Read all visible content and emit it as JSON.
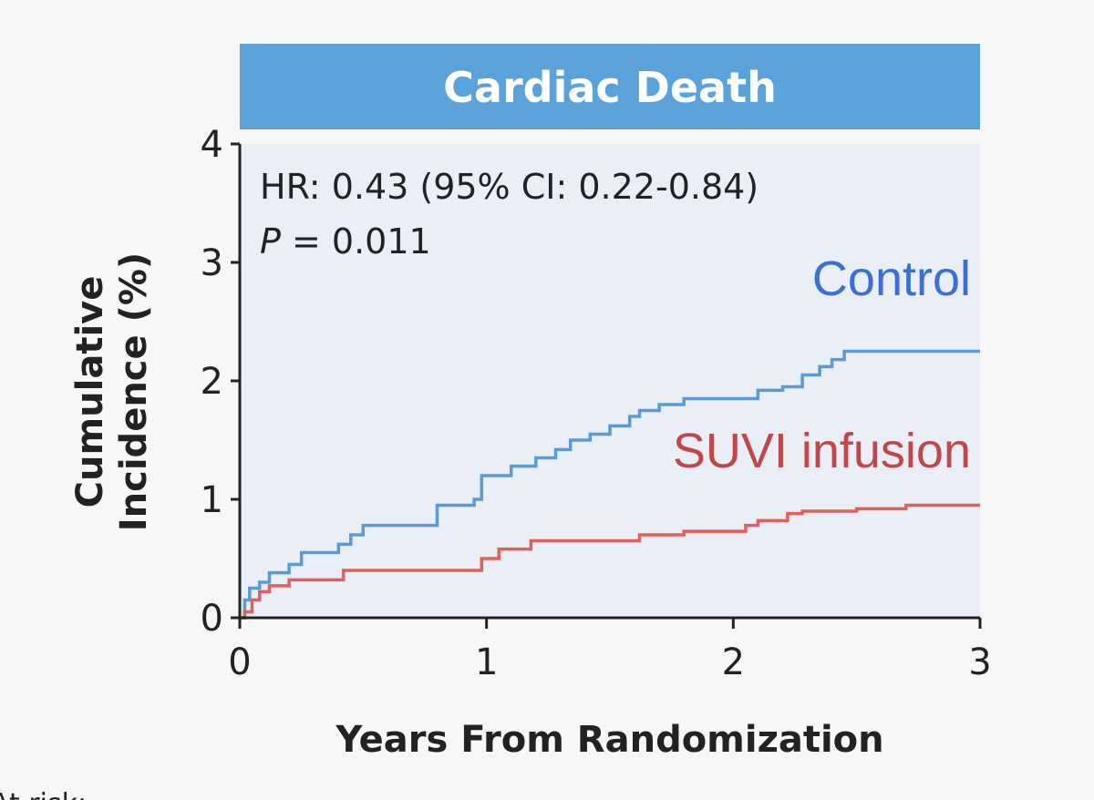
{
  "chart_data": {
    "type": "line",
    "title": "Cardiac Death",
    "xlabel": "Years From Randomization",
    "ylabel": "Cumulative Incidence (%)",
    "ylabel_lines": [
      "Cumulative",
      "Incidence (%)"
    ],
    "xlim": [
      0,
      3
    ],
    "ylim": [
      0,
      4
    ],
    "xticks": [
      0,
      1,
      2,
      3
    ],
    "yticks": [
      0,
      1,
      2,
      3,
      4
    ],
    "annotations": {
      "hr": "HR: 0.43 (95% CI: 0.22-0.84)",
      "p_prefix": "P",
      "p_value": " = 0.011"
    },
    "series": [
      {
        "name": "Control",
        "color": "#3a6fd6",
        "line_color": "#5b9bd5",
        "points": [
          [
            0,
            0
          ],
          [
            0.02,
            0.15
          ],
          [
            0.04,
            0.25
          ],
          [
            0.08,
            0.3
          ],
          [
            0.12,
            0.38
          ],
          [
            0.2,
            0.45
          ],
          [
            0.25,
            0.55
          ],
          [
            0.4,
            0.62
          ],
          [
            0.45,
            0.7
          ],
          [
            0.5,
            0.78
          ],
          [
            0.8,
            0.95
          ],
          [
            0.95,
            1.0
          ],
          [
            0.98,
            1.2
          ],
          [
            1.1,
            1.28
          ],
          [
            1.2,
            1.35
          ],
          [
            1.28,
            1.42
          ],
          [
            1.34,
            1.5
          ],
          [
            1.42,
            1.55
          ],
          [
            1.5,
            1.62
          ],
          [
            1.58,
            1.7
          ],
          [
            1.62,
            1.75
          ],
          [
            1.7,
            1.8
          ],
          [
            1.8,
            1.85
          ],
          [
            2.05,
            1.85
          ],
          [
            2.1,
            1.92
          ],
          [
            2.2,
            1.95
          ],
          [
            2.28,
            2.05
          ],
          [
            2.35,
            2.12
          ],
          [
            2.4,
            2.18
          ],
          [
            2.45,
            2.25
          ],
          [
            3.0,
            2.25
          ]
        ]
      },
      {
        "name": "SUVI infusion",
        "color": "#c0484a",
        "line_color": "#e0605c",
        "points": [
          [
            0,
            0
          ],
          [
            0.02,
            0.05
          ],
          [
            0.05,
            0.15
          ],
          [
            0.08,
            0.22
          ],
          [
            0.12,
            0.27
          ],
          [
            0.2,
            0.32
          ],
          [
            0.42,
            0.4
          ],
          [
            0.95,
            0.4
          ],
          [
            0.98,
            0.5
          ],
          [
            1.05,
            0.58
          ],
          [
            1.18,
            0.65
          ],
          [
            1.55,
            0.65
          ],
          [
            1.62,
            0.7
          ],
          [
            1.8,
            0.73
          ],
          [
            2.05,
            0.78
          ],
          [
            2.1,
            0.82
          ],
          [
            2.22,
            0.88
          ],
          [
            2.28,
            0.9
          ],
          [
            2.5,
            0.92
          ],
          [
            2.7,
            0.95
          ],
          [
            3.0,
            0.95
          ]
        ]
      }
    ]
  },
  "footer": {
    "partial_label": "At risk:"
  }
}
